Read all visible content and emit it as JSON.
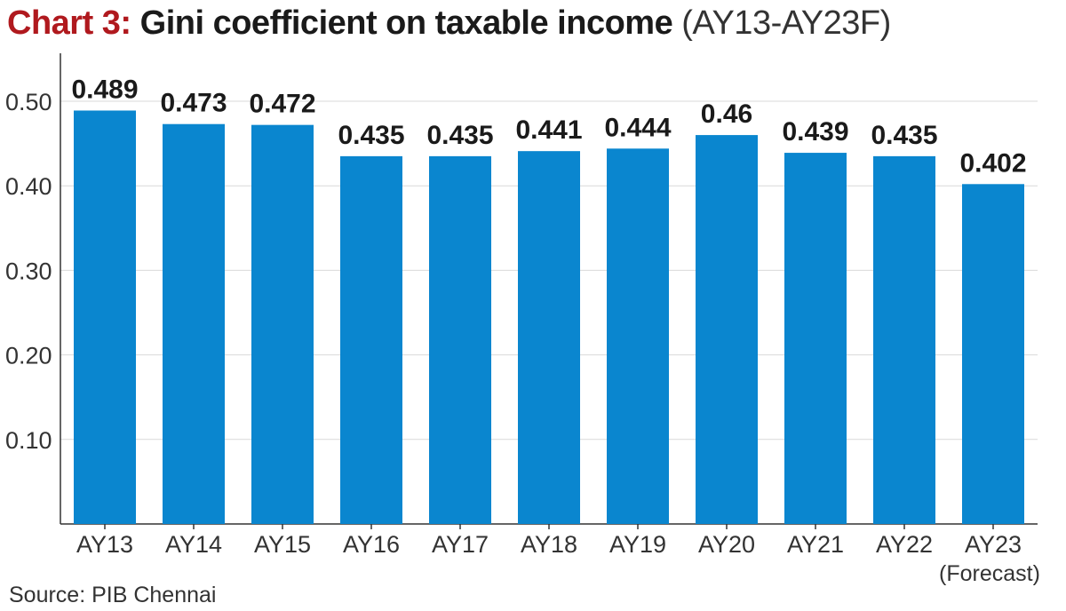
{
  "title": {
    "lead": "Chart 3:",
    "main": "Gini coefficient on taxable income",
    "sub": "(AY13-AY23F)"
  },
  "source": "Source: PIB Chennai",
  "colors": {
    "bar": "#0a86cf",
    "title_accent": "#b0191e",
    "grid": "#d9d9d9",
    "axis": "#333333"
  },
  "chart_data": {
    "type": "bar",
    "categories": [
      "AY13",
      "AY14",
      "AY15",
      "AY16",
      "AY17",
      "AY18",
      "AY19",
      "AY20",
      "AY21",
      "AY22",
      "AY23"
    ],
    "category_notes": [
      "",
      "",
      "",
      "",
      "",
      "",
      "",
      "",
      "",
      "",
      "(Forecast)"
    ],
    "values": [
      0.489,
      0.473,
      0.472,
      0.435,
      0.435,
      0.441,
      0.444,
      0.46,
      0.439,
      0.435,
      0.402
    ],
    "value_labels": [
      "0.489",
      "0.473",
      "0.472",
      "0.435",
      "0.435",
      "0.441",
      "0.444",
      "0.46",
      "0.439",
      "0.435",
      "0.402"
    ],
    "yticks": [
      "0.10",
      "0.20",
      "0.30",
      "0.40",
      "0.50"
    ],
    "ytick_values": [
      0.1,
      0.2,
      0.3,
      0.4,
      0.5
    ],
    "ylim": [
      0,
      0.53
    ],
    "grid": true,
    "xlabel": "",
    "ylabel": ""
  }
}
